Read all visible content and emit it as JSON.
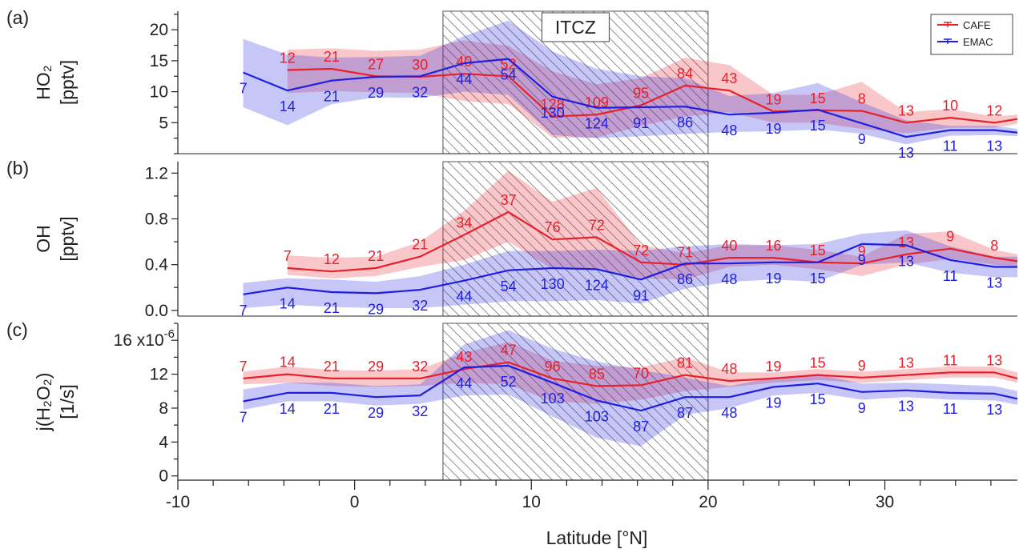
{
  "chart_data": {
    "type": "line",
    "xlabel": "Latitude [°N]",
    "xlim": [
      -10,
      37.5
    ],
    "xticks": [
      -10,
      0,
      10,
      20,
      30
    ],
    "shaded_region": {
      "label": "ITCZ",
      "x": [
        5,
        20
      ]
    },
    "legend": {
      "position": "top-right",
      "entries": [
        {
          "name": "CAFE",
          "color": "#e8202a"
        },
        {
          "name": "EMAC",
          "color": "#1f1fe0"
        }
      ]
    },
    "panels": [
      {
        "id": "a",
        "panel_label": "(a)",
        "ylabel_lines": [
          "HO₂",
          "[pptv]"
        ],
        "ylim": [
          0,
          23
        ],
        "yticks": [
          5,
          10,
          15,
          20
        ],
        "series": [
          {
            "name": "CAFE",
            "color": "#e8202a",
            "x": [
              -3.8,
              -1.3,
              1.2,
              3.7,
              6.2,
              8.7,
              11.2,
              13.7,
              16.2,
              18.7,
              21.2,
              23.7,
              26.2,
              28.7,
              31.2,
              33.7,
              36.2,
              37.5
            ],
            "y": [
              13.5,
              13.7,
              12.5,
              12.4,
              12.9,
              12.5,
              6.0,
              6.3,
              7.8,
              11.0,
              10.2,
              6.8,
              7.0,
              6.9,
              5.0,
              5.8,
              5.0,
              5.6
            ],
            "lower": [
              9.8,
              10.1,
              9.9,
              9.8,
              8.5,
              8.0,
              2.6,
              2.6,
              4.5,
              6.0,
              6.7,
              5.0,
              5.0,
              4.0,
              3.3,
              4.2,
              4.2,
              4.8
            ],
            "upper": [
              16.8,
              17.0,
              16.6,
              16.8,
              18.3,
              17.4,
              13.3,
              11.2,
              12.2,
              15.5,
              14.3,
              9.5,
              9.5,
              11.6,
              6.7,
              7.2,
              6.0,
              6.3
            ],
            "labels": [
              "12",
              "21",
              "27",
              "30",
              "40",
              "52",
              "128",
              "109",
              "95",
              "84",
              "43",
              "19",
              "15",
              "8",
              "13",
              "10",
              "12"
            ]
          },
          {
            "name": "EMAC",
            "color": "#1f1fe0",
            "x": [
              -6.3,
              -3.8,
              -1.3,
              1.2,
              3.7,
              6.2,
              8.7,
              11.2,
              13.7,
              16.2,
              18.7,
              21.2,
              23.7,
              26.2,
              28.7,
              31.2,
              33.7,
              36.2,
              37.5
            ],
            "y": [
              13.1,
              10.2,
              11.8,
              12.4,
              12.5,
              14.6,
              15.3,
              9.2,
              7.4,
              7.5,
              7.6,
              6.3,
              6.6,
              7.1,
              4.9,
              2.7,
              3.8,
              3.8,
              3.4
            ],
            "lower": [
              7.5,
              4.6,
              8.0,
              9.1,
              9.0,
              10.0,
              9.5,
              3.0,
              2.5,
              2.8,
              3.2,
              3.5,
              3.6,
              3.9,
              3.2,
              1.5,
              2.9,
              3.0,
              2.8
            ],
            "upper": [
              18.5,
              16.0,
              15.5,
              15.6,
              15.8,
              19.0,
              21.5,
              16.5,
              13.7,
              12.5,
              12.2,
              9.3,
              9.8,
              11.4,
              8.3,
              5.4,
              4.5,
              4.5,
              4.0
            ],
            "labels": [
              "7",
              "14",
              "21",
              "29",
              "32",
              "44",
              "54",
              "130",
              "124",
              "91",
              "86",
              "48",
              "19",
              "15",
              "9",
              "13",
              "11",
              "13"
            ]
          }
        ]
      },
      {
        "id": "b",
        "panel_label": "(b)",
        "ylabel_lines": [
          "OH",
          "[pptv]"
        ],
        "ylim": [
          -0.05,
          1.3
        ],
        "yticks": [
          0.0,
          0.4,
          0.8,
          1.2
        ],
        "series": [
          {
            "name": "CAFE",
            "color": "#e8202a",
            "x": [
              -3.8,
              -1.3,
              1.2,
              3.7,
              6.2,
              8.7,
              11.2,
              13.7,
              16.2,
              18.7,
              21.2,
              23.7,
              26.2,
              28.7,
              31.2,
              33.7,
              36.2,
              37.5
            ],
            "y": [
              0.37,
              0.34,
              0.37,
              0.47,
              0.66,
              0.86,
              0.62,
              0.64,
              0.42,
              0.4,
              0.46,
              0.46,
              0.42,
              0.41,
              0.49,
              0.54,
              0.46,
              0.43
            ],
            "lower": [
              0.31,
              0.28,
              0.3,
              0.38,
              0.44,
              0.6,
              0.36,
              0.36,
              0.28,
              0.27,
              0.38,
              0.4,
              0.36,
              0.3,
              0.4,
              0.45,
              0.4,
              0.39
            ],
            "upper": [
              0.48,
              0.46,
              0.47,
              0.6,
              0.87,
              1.22,
              0.95,
              1.07,
              0.57,
              0.5,
              0.57,
              0.57,
              0.53,
              0.47,
              0.67,
              0.69,
              0.53,
              0.49
            ],
            "labels": [
              "7",
              "12",
              "21",
              "21",
              "34",
              "37",
              "76",
              "72",
              "72",
              "71",
              "40",
              "16",
              "15",
              "9",
              "13",
              "9",
              "8"
            ]
          },
          {
            "name": "EMAC",
            "color": "#1f1fe0",
            "x": [
              -6.3,
              -3.8,
              -1.3,
              1.2,
              3.7,
              6.2,
              8.7,
              11.2,
              13.7,
              16.2,
              18.7,
              21.2,
              23.7,
              26.2,
              28.7,
              31.2,
              33.7,
              36.2,
              37.5
            ],
            "y": [
              0.14,
              0.2,
              0.16,
              0.15,
              0.18,
              0.26,
              0.35,
              0.37,
              0.36,
              0.27,
              0.41,
              0.41,
              0.42,
              0.42,
              0.58,
              0.57,
              0.44,
              0.38,
              0.38
            ],
            "lower": [
              0.02,
              0.05,
              0.03,
              0.02,
              0.02,
              0.05,
              0.08,
              0.08,
              0.09,
              0.06,
              0.19,
              0.25,
              0.27,
              0.25,
              0.4,
              0.42,
              0.33,
              0.29,
              0.29
            ],
            "upper": [
              0.24,
              0.28,
              0.27,
              0.25,
              0.3,
              0.4,
              0.52,
              0.52,
              0.53,
              0.52,
              0.56,
              0.58,
              0.57,
              0.58,
              0.67,
              0.7,
              0.56,
              0.47,
              0.47
            ],
            "labels": [
              "7",
              "14",
              "21",
              "29",
              "32",
              "44",
              "54",
              "130",
              "124",
              "91",
              "86",
              "48",
              "19",
              "15",
              "9",
              "13",
              "11",
              "13"
            ]
          }
        ]
      },
      {
        "id": "c",
        "panel_label": "(c)",
        "ylabel_lines": [
          "j(H₂O₂)",
          "[1/s]"
        ],
        "y_multiplier": "x10",
        "y_multiplier_exp": "-6",
        "ylim": [
          -0.5,
          18.0
        ],
        "yticks": [
          0,
          4,
          8,
          12,
          16
        ],
        "series": [
          {
            "name": "CAFE",
            "color": "#e8202a",
            "x": [
              -6.3,
              -3.8,
              -1.3,
              1.2,
              3.7,
              6.2,
              8.7,
              11.2,
              13.7,
              16.2,
              18.7,
              21.2,
              23.7,
              26.2,
              28.7,
              31.2,
              33.7,
              36.2,
              37.5
            ],
            "y": [
              11.5,
              12.0,
              11.5,
              11.5,
              11.5,
              12.6,
              13.4,
              11.5,
              10.6,
              10.7,
              11.9,
              11.2,
              11.5,
              11.9,
              11.6,
              11.9,
              12.2,
              12.2,
              11.5
            ],
            "lower": [
              10.8,
              11.0,
              10.6,
              10.5,
              10.6,
              11.0,
              10.8,
              8.8,
              8.5,
              9.0,
              10.0,
              10.5,
              11.0,
              11.3,
              11.0,
              11.3,
              11.6,
              11.6,
              11.0
            ],
            "upper": [
              12.3,
              12.9,
              12.5,
              12.4,
              12.6,
              14.5,
              15.8,
              13.6,
              13.0,
              12.8,
              14.0,
              12.2,
              12.2,
              12.6,
              12.3,
              12.6,
              12.9,
              12.9,
              12.2
            ],
            "labels": [
              "7",
              "14",
              "21",
              "29",
              "32",
              "43",
              "47",
              "96",
              "85",
              "70",
              "81",
              "48",
              "19",
              "15",
              "9",
              "13",
              "11",
              "13"
            ]
          },
          {
            "name": "EMAC",
            "color": "#1f1fe0",
            "x": [
              -6.3,
              -3.8,
              -1.3,
              1.2,
              3.7,
              6.2,
              8.7,
              11.2,
              13.7,
              16.2,
              18.7,
              21.2,
              23.7,
              26.2,
              28.7,
              31.2,
              33.7,
              36.2,
              37.5
            ],
            "y": [
              8.8,
              9.8,
              9.8,
              9.3,
              9.5,
              12.8,
              13.0,
              11.0,
              8.9,
              7.7,
              9.3,
              9.3,
              10.5,
              10.9,
              9.9,
              10.1,
              9.8,
              9.7,
              9.1
            ],
            "lower": [
              7.8,
              8.8,
              8.8,
              8.3,
              8.5,
              9.5,
              9.6,
              7.0,
              4.5,
              3.5,
              7.2,
              8.0,
              9.5,
              9.8,
              9.0,
              9.3,
              9.0,
              8.9,
              8.4
            ],
            "upper": [
              10.2,
              11.0,
              11.0,
              10.6,
              10.8,
              15.5,
              17.2,
              15.0,
              13.5,
              12.5,
              11.6,
              10.6,
              11.6,
              12.0,
              10.9,
              11.0,
              10.8,
              10.6,
              10.0
            ],
            "labels": [
              "7",
              "14",
              "21",
              "29",
              "32",
              "44",
              "52",
              "103",
              "103",
              "87",
              "87",
              "48",
              "19",
              "15",
              "9",
              "13",
              "11",
              "13"
            ]
          }
        ]
      }
    ]
  }
}
